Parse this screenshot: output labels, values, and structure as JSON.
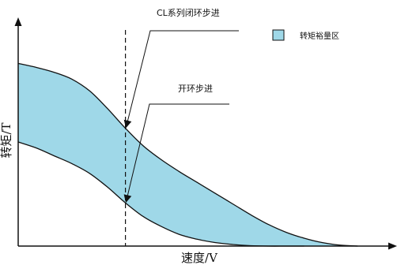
{
  "chart_data": {
    "type": "area",
    "xlabel": "速度/V",
    "ylabel": "转矩/T",
    "xlim": [
      0,
      1
    ],
    "ylim": [
      0,
      1
    ],
    "grid": false,
    "legend_position": "top-right",
    "legend": [
      {
        "label": "转矩裕量区",
        "color": "#9fd8e8"
      }
    ],
    "series": [
      {
        "name": "upper",
        "x": [
          0.0,
          0.05,
          0.1,
          0.15,
          0.2,
          0.25,
          0.3,
          0.35,
          0.4,
          0.45,
          0.5,
          0.55,
          0.6,
          0.65,
          0.7,
          0.75,
          0.8,
          0.85,
          0.9,
          0.95
        ],
        "y": [
          0.93,
          0.91,
          0.885,
          0.85,
          0.79,
          0.7,
          0.6,
          0.51,
          0.44,
          0.38,
          0.325,
          0.27,
          0.215,
          0.16,
          0.11,
          0.07,
          0.04,
          0.018,
          0.005,
          0.0
        ]
      },
      {
        "name": "lower",
        "x": [
          0.0,
          0.05,
          0.1,
          0.15,
          0.2,
          0.25,
          0.3,
          0.35,
          0.4,
          0.45,
          0.5,
          0.55,
          0.6,
          0.65,
          0.7,
          0.75,
          0.8
        ],
        "y": [
          0.53,
          0.5,
          0.46,
          0.42,
          0.37,
          0.3,
          0.22,
          0.15,
          0.1,
          0.06,
          0.035,
          0.018,
          0.008,
          0.002,
          0.0,
          0.0,
          0.0
        ]
      }
    ],
    "vline_x": 0.3,
    "colors": {
      "fill": "#9fd8e8",
      "line": "#111111"
    },
    "annotations": [
      {
        "text": "CL系列闭环步进",
        "x": 0.3,
        "y": 0.82,
        "target": "upper"
      },
      {
        "text": "开环步进",
        "x": 0.3,
        "y": 0.35,
        "target": "lower"
      }
    ]
  }
}
